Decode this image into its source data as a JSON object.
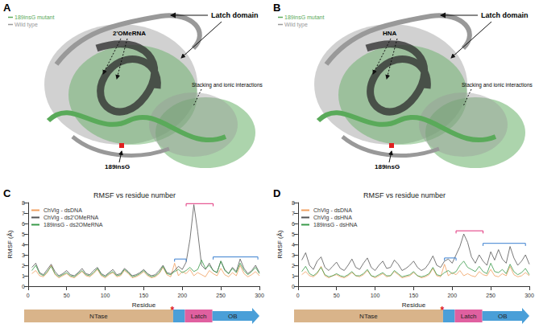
{
  "panels": [
    {
      "letter": "A",
      "legend": [
        {
          "label": "189insG mutant",
          "color": "#5aaa5a"
        },
        {
          "label": "Wild type",
          "color": "#999999"
        }
      ],
      "ligand": "2'OMeRNA",
      "latch": "Latch domain",
      "interactions": "Stacking and ionic interactions",
      "mutation": "189insG"
    },
    {
      "letter": "B",
      "legend": [
        {
          "label": "189insG mutant",
          "color": "#5aaa5a"
        },
        {
          "label": "Wild type",
          "color": "#999999"
        }
      ],
      "ligand": "HNA",
      "latch": "Latch domain",
      "interactions": "Stacking and ionic interactions",
      "mutation": "189insG"
    }
  ],
  "chart_data": [
    {
      "type": "line",
      "panel": "C",
      "title": "RMSF vs residue number",
      "x_label": "Residue",
      "y_label": "RMSF (Å)",
      "x": [
        5,
        10,
        15,
        20,
        25,
        30,
        35,
        40,
        45,
        50,
        55,
        60,
        65,
        70,
        75,
        80,
        85,
        90,
        95,
        100,
        105,
        110,
        115,
        120,
        125,
        130,
        135,
        140,
        145,
        150,
        155,
        160,
        165,
        170,
        175,
        180,
        185,
        190,
        195,
        200,
        205,
        210,
        215,
        220,
        225,
        230,
        235,
        240,
        245,
        250,
        255,
        260,
        265,
        270,
        275,
        280,
        285,
        290,
        295,
        300
      ],
      "series": [
        {
          "name": "ChVIg - dsDNA",
          "color": "#f0a060",
          "values": [
            1.2,
            1.5,
            1.0,
            0.9,
            1.3,
            2.0,
            1.1,
            0.8,
            1.0,
            1.2,
            0.9,
            0.8,
            1.1,
            1.4,
            1.0,
            0.9,
            1.2,
            1.6,
            1.0,
            0.8,
            1.1,
            1.3,
            0.9,
            1.0,
            1.5,
            1.2,
            0.8,
            0.9,
            1.1,
            1.4,
            1.0,
            0.8,
            0.9,
            1.2,
            1.8,
            1.1,
            0.9,
            2.2,
            1.0,
            1.4,
            1.2,
            1.6,
            1.0,
            1.3,
            1.1,
            0.9,
            1.5,
            1.2,
            1.0,
            1.7,
            1.1,
            0.9,
            1.3,
            1.0,
            2.0,
            1.2,
            0.9,
            1.1,
            1.4,
            1.0
          ]
        },
        {
          "name": "ChVIg - ds2'OMeRNA",
          "color": "#555555",
          "values": [
            1.8,
            2.2,
            1.3,
            1.1,
            1.6,
            2.1,
            1.4,
            1.0,
            1.2,
            1.5,
            1.1,
            1.0,
            1.3,
            1.7,
            1.2,
            1.1,
            1.5,
            1.8,
            1.2,
            1.0,
            1.3,
            1.6,
            1.1,
            1.2,
            1.7,
            1.4,
            1.0,
            1.1,
            1.3,
            1.6,
            1.2,
            1.0,
            1.1,
            1.5,
            2.0,
            1.3,
            1.2,
            1.5,
            1.9,
            1.6,
            2.3,
            4.5,
            7.8,
            5.2,
            2.0,
            1.6,
            2.2,
            1.5,
            1.3,
            2.4,
            1.6,
            1.2,
            1.8,
            1.4,
            2.6,
            1.7,
            1.2,
            1.5,
            2.0,
            1.3
          ]
        },
        {
          "name": "189insG - ds2OMeRNA",
          "color": "#3a9a4a",
          "values": [
            1.5,
            2.0,
            1.2,
            1.0,
            1.4,
            1.9,
            1.2,
            0.9,
            1.1,
            1.3,
            1.0,
            0.9,
            1.2,
            1.5,
            1.1,
            1.0,
            1.3,
            1.7,
            1.1,
            0.9,
            1.2,
            1.4,
            1.0,
            1.1,
            1.6,
            1.3,
            0.9,
            1.0,
            1.2,
            1.5,
            1.1,
            0.9,
            1.0,
            1.3,
            1.9,
            1.2,
            1.1,
            1.4,
            1.6,
            1.3,
            1.5,
            1.8,
            1.4,
            1.6,
            2.5,
            1.7,
            2.0,
            1.5,
            1.3,
            2.4,
            1.5,
            1.2,
            1.7,
            1.3,
            2.2,
            1.5,
            1.1,
            1.4,
            1.8,
            1.2
          ]
        }
      ],
      "xlim": [
        0,
        300
      ],
      "xticks": [
        0,
        50,
        100,
        150,
        200,
        250,
        300
      ],
      "ylim": [
        0,
        8
      ],
      "yticks": [
        0,
        1,
        2,
        3,
        4,
        5,
        6,
        7,
        8
      ],
      "grid": false,
      "legend": "upper left",
      "brackets": [
        {
          "x0": 190,
          "x1": 205,
          "y": 2.6,
          "color": "#3a7fd0"
        },
        {
          "x0": 205,
          "x1": 240,
          "y": 7.9,
          "color": "#e0307a"
        },
        {
          "x0": 240,
          "x1": 298,
          "y": 2.8,
          "color": "#3a7fd0"
        }
      ],
      "domains": [
        {
          "label": "NTase",
          "start": 0,
          "end": 190,
          "color": "#d9b48a"
        },
        {
          "start": 190,
          "end": 205,
          "color": "#4a9fd8"
        },
        {
          "label": "Latch",
          "start": 205,
          "end": 240,
          "color": "#e060a0"
        },
        {
          "label": "OB",
          "start": 240,
          "end": 300,
          "color": "#4a9fd8"
        }
      ],
      "mutation": {
        "label": "*",
        "x": 189,
        "color": "#e02020"
      }
    },
    {
      "type": "line",
      "panel": "D",
      "title": "RMSF vs residue number",
      "x_label": "Residue",
      "y_label": "RMSF (Å)",
      "x": [
        5,
        10,
        15,
        20,
        25,
        30,
        35,
        40,
        45,
        50,
        55,
        60,
        65,
        70,
        75,
        80,
        85,
        90,
        95,
        100,
        105,
        110,
        115,
        120,
        125,
        130,
        135,
        140,
        145,
        150,
        155,
        160,
        165,
        170,
        175,
        180,
        185,
        190,
        195,
        200,
        205,
        210,
        215,
        220,
        225,
        230,
        235,
        240,
        245,
        250,
        255,
        260,
        265,
        270,
        275,
        280,
        285,
        290,
        295,
        300
      ],
      "series": [
        {
          "name": "ChVIg - dsDNA",
          "color": "#f0a060",
          "values": [
            1.1,
            1.4,
            1.0,
            0.9,
            1.2,
            1.9,
            1.0,
            0.8,
            1.0,
            1.1,
            0.9,
            0.8,
            1.0,
            1.3,
            1.0,
            0.9,
            1.1,
            1.5,
            1.0,
            0.8,
            1.0,
            1.2,
            0.9,
            1.0,
            1.4,
            1.1,
            0.8,
            0.9,
            1.0,
            1.3,
            1.0,
            0.8,
            0.9,
            1.1,
            1.7,
            1.0,
            0.9,
            2.1,
            1.0,
            1.3,
            1.1,
            1.5,
            1.0,
            1.2,
            1.0,
            0.9,
            1.4,
            1.1,
            1.0,
            1.6,
            1.0,
            0.9,
            1.2,
            1.0,
            1.9,
            1.1,
            0.9,
            1.0,
            1.3,
            1.0
          ]
        },
        {
          "name": "ChVIg - dsHNA",
          "color": "#555555",
          "values": [
            2.5,
            3.2,
            2.0,
            1.6,
            2.4,
            2.8,
            1.8,
            1.5,
            1.9,
            2.3,
            1.7,
            1.5,
            2.0,
            2.6,
            1.8,
            1.6,
            2.2,
            2.7,
            1.8,
            1.5,
            2.0,
            2.4,
            1.7,
            1.8,
            2.5,
            2.1,
            1.5,
            1.7,
            2.0,
            2.4,
            1.8,
            1.5,
            1.7,
            2.2,
            2.9,
            2.0,
            1.8,
            2.4,
            2.6,
            2.2,
            3.0,
            3.8,
            5.0,
            4.2,
            2.8,
            2.2,
            3.0,
            2.4,
            2.0,
            3.3,
            2.5,
            3.5,
            2.6,
            2.2,
            3.8,
            2.7,
            2.0,
            2.4,
            3.0,
            2.1
          ]
        },
        {
          "name": "189insG - dsHNA",
          "color": "#3a9a4a",
          "values": [
            1.4,
            1.9,
            1.2,
            1.0,
            1.3,
            1.8,
            1.1,
            0.9,
            1.0,
            1.2,
            1.0,
            0.9,
            1.1,
            1.4,
            1.0,
            1.0,
            1.2,
            1.6,
            1.0,
            0.9,
            1.1,
            1.3,
            1.0,
            1.0,
            1.5,
            1.2,
            0.9,
            1.0,
            1.1,
            1.4,
            1.0,
            0.9,
            1.0,
            1.2,
            1.8,
            1.1,
            1.0,
            1.3,
            1.5,
            1.2,
            1.4,
            2.0,
            2.4,
            1.8,
            1.6,
            1.4,
            1.9,
            1.4,
            1.2,
            2.2,
            1.4,
            1.3,
            1.6,
            1.2,
            2.1,
            1.4,
            1.1,
            1.3,
            1.7,
            1.1
          ]
        }
      ],
      "xlim": [
        0,
        300
      ],
      "xticks": [
        0,
        50,
        100,
        150,
        200,
        250,
        300
      ],
      "ylim": [
        0,
        8
      ],
      "yticks": [
        0,
        1,
        2,
        3,
        4,
        5,
        6,
        7,
        8
      ],
      "grid": false,
      "legend": "upper left",
      "brackets": [
        {
          "x0": 190,
          "x1": 205,
          "y": 2.7,
          "color": "#3a7fd0"
        },
        {
          "x0": 205,
          "x1": 240,
          "y": 5.3,
          "color": "#e0307a"
        },
        {
          "x0": 240,
          "x1": 295,
          "y": 4.1,
          "color": "#3a7fd0"
        }
      ],
      "domains": [
        {
          "label": "NTase",
          "start": 0,
          "end": 190,
          "color": "#d9b48a"
        },
        {
          "start": 190,
          "end": 205,
          "color": "#4a9fd8"
        },
        {
          "label": "Latch",
          "start": 205,
          "end": 240,
          "color": "#e060a0"
        },
        {
          "label": "OB",
          "start": 240,
          "end": 300,
          "color": "#4a9fd8"
        }
      ],
      "mutation": {
        "label": "*",
        "x": 189,
        "color": "#e02020"
      }
    }
  ]
}
